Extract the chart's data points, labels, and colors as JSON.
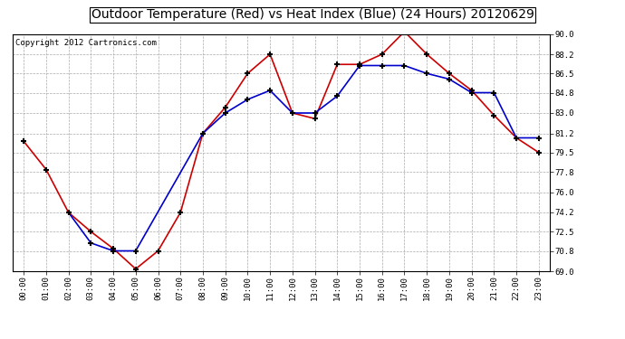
{
  "title": "Outdoor Temperature (Red) vs Heat Index (Blue) (24 Hours) 20120629",
  "copyright_text": "Copyright 2012 Cartronics.com",
  "x_labels": [
    "00:00",
    "01:00",
    "02:00",
    "03:00",
    "04:00",
    "05:00",
    "06:00",
    "07:00",
    "08:00",
    "09:00",
    "10:00",
    "11:00",
    "12:00",
    "13:00",
    "14:00",
    "15:00",
    "16:00",
    "17:00",
    "18:00",
    "19:00",
    "20:00",
    "21:00",
    "22:00",
    "23:00"
  ],
  "temp_red": [
    80.5,
    78.0,
    74.2,
    72.5,
    71.0,
    69.2,
    70.8,
    74.2,
    81.2,
    83.5,
    86.5,
    88.2,
    83.0,
    82.5,
    87.3,
    87.3,
    88.2,
    90.2,
    88.2,
    86.5,
    85.0,
    82.8,
    80.8,
    79.5
  ],
  "heat_blue": [
    null,
    null,
    74.2,
    71.5,
    70.8,
    70.8,
    null,
    null,
    81.2,
    83.0,
    84.2,
    85.0,
    83.0,
    83.0,
    84.5,
    87.2,
    87.2,
    87.2,
    86.5,
    86.0,
    84.8,
    84.8,
    80.8,
    80.8
  ],
  "ylim_min": 69.0,
  "ylim_max": 90.0,
  "yticks": [
    69.0,
    70.8,
    72.5,
    74.2,
    76.0,
    77.8,
    79.5,
    81.2,
    83.0,
    84.8,
    86.5,
    88.2,
    90.0
  ],
  "bg_color": "#ffffff",
  "plot_bg_color": "#ffffff",
  "grid_color": "#aaaaaa",
  "red_color": "#cc0000",
  "blue_color": "#0000cc",
  "title_fontsize": 10,
  "copyright_fontsize": 6.5
}
